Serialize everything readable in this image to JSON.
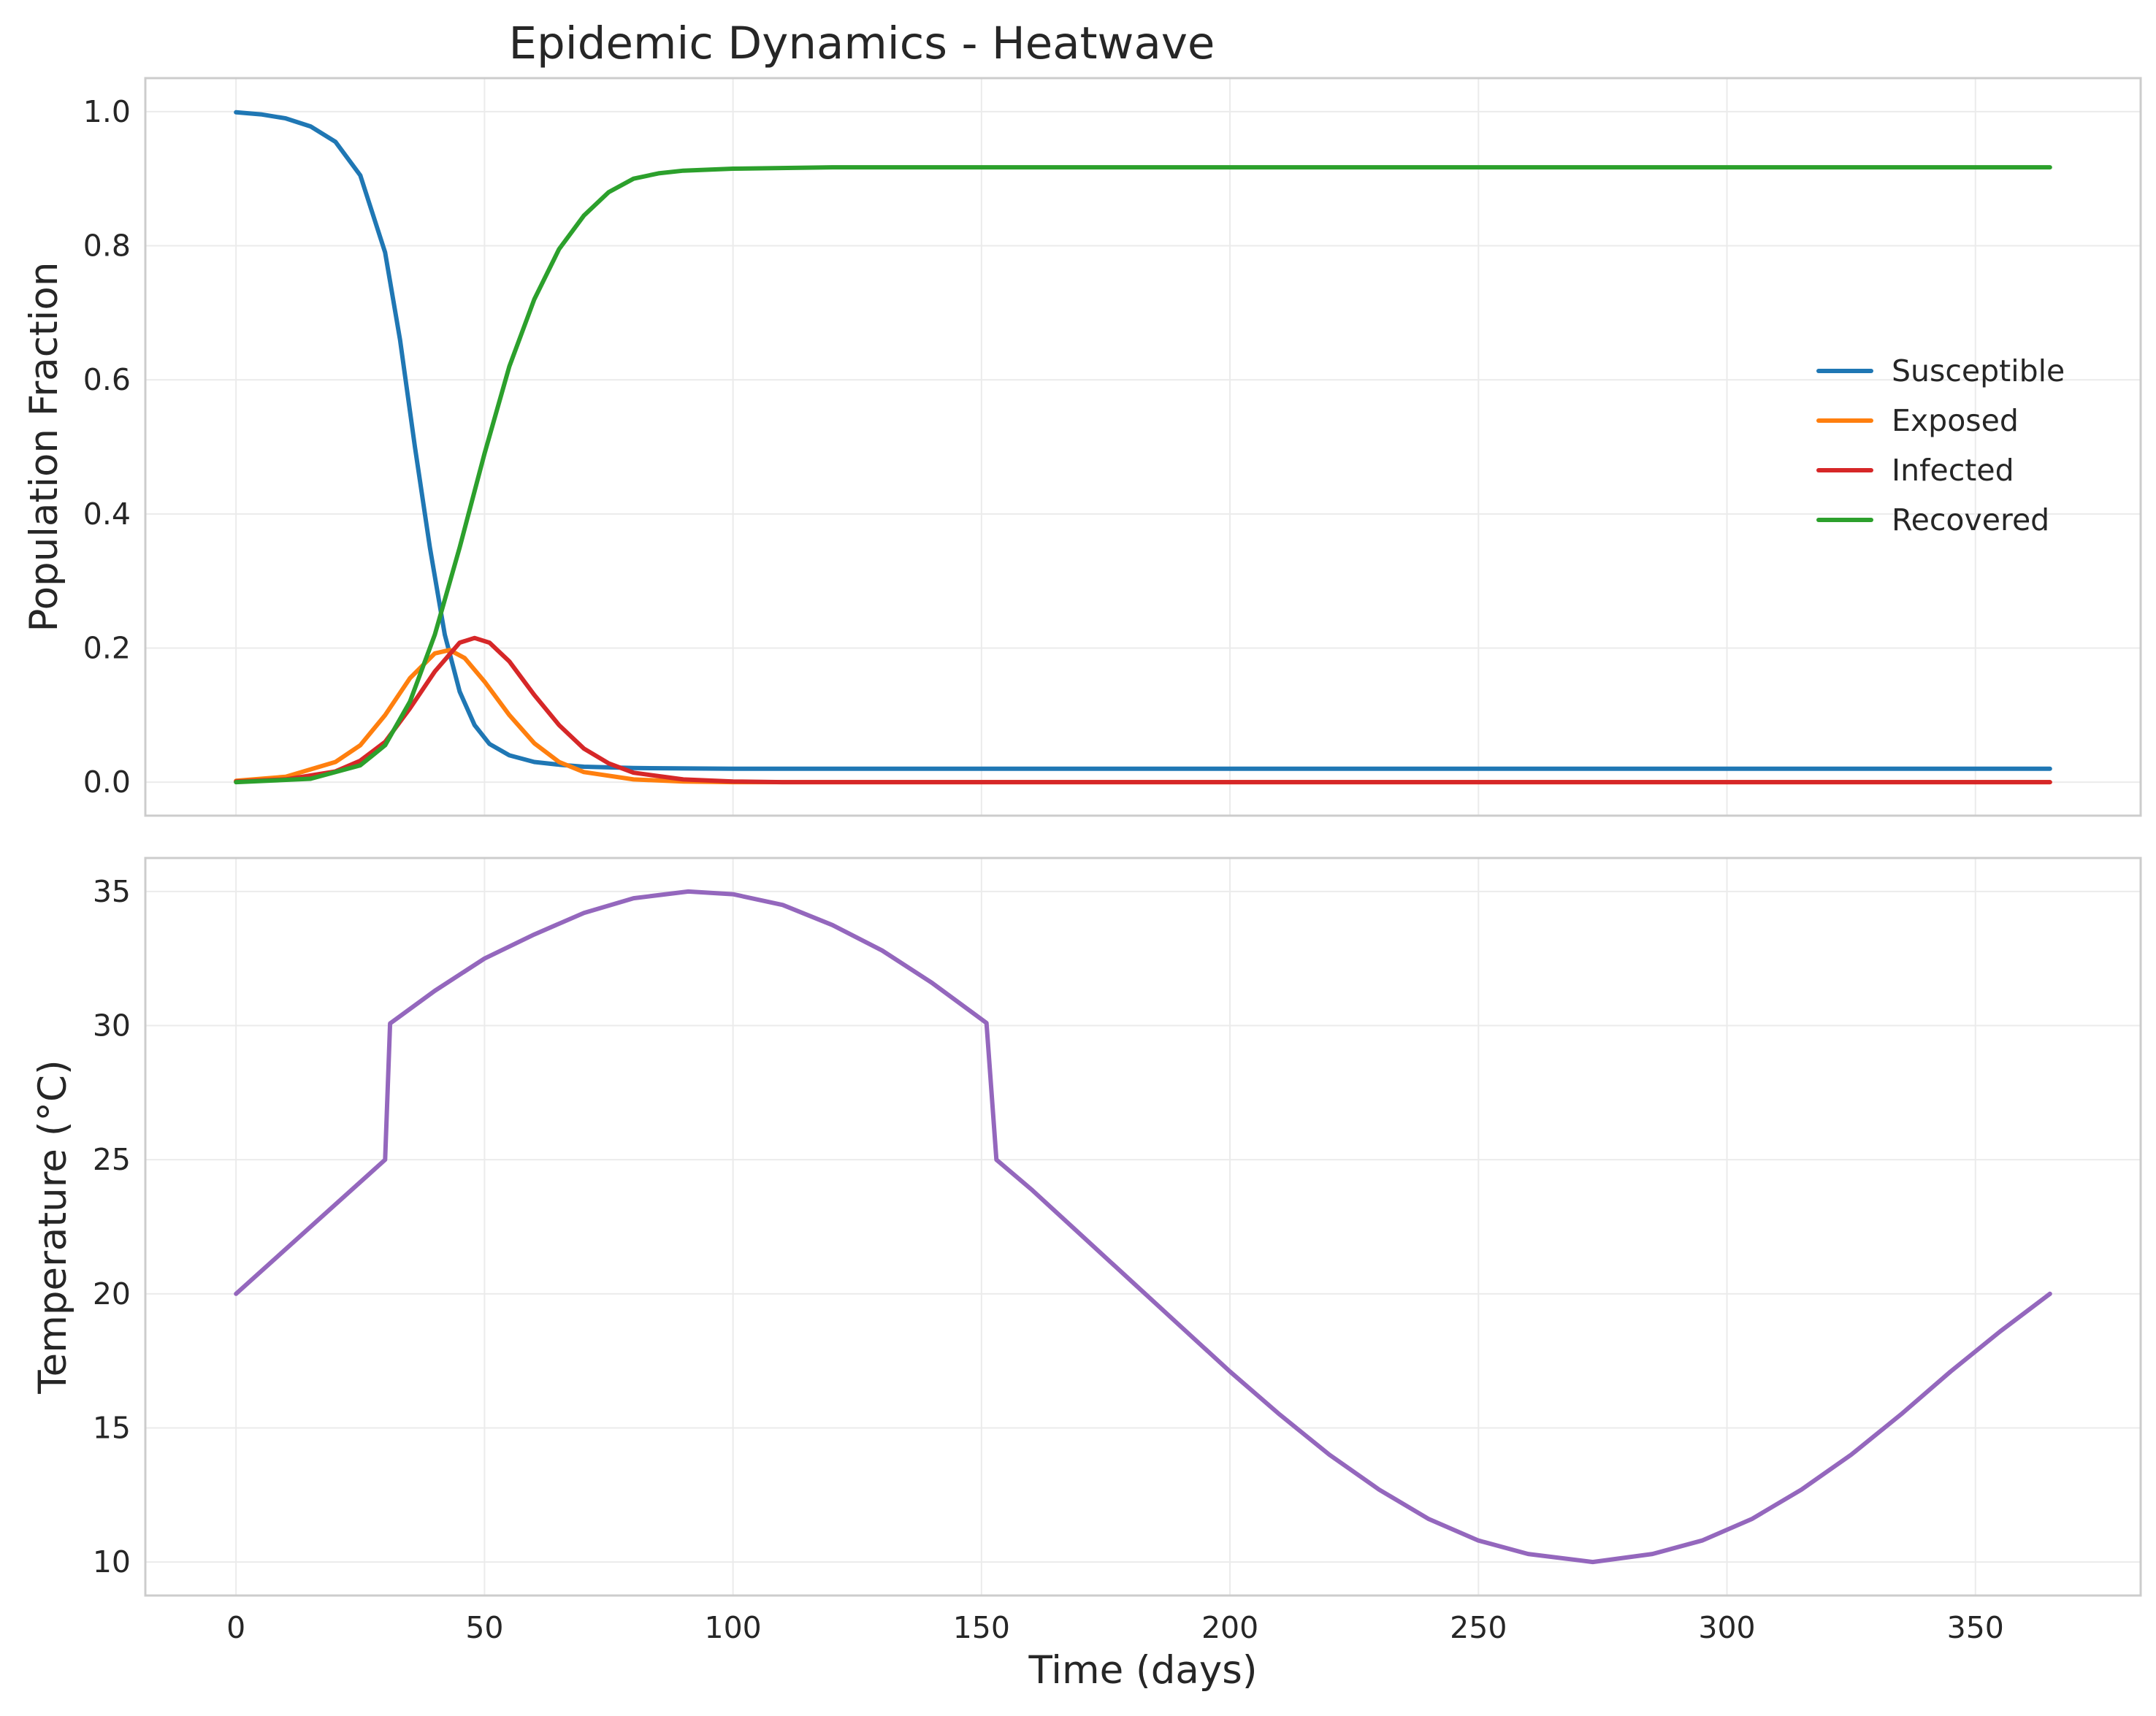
{
  "chart_data": [
    {
      "type": "line",
      "title": "Epidemic Dynamics - Heatwave",
      "xlabel": "",
      "ylabel": "Population Fraction",
      "xlim": [
        -18.25,
        383.25
      ],
      "ylim": [
        -0.05,
        1.05
      ],
      "xticks": [
        0,
        50,
        100,
        150,
        200,
        250,
        300,
        350
      ],
      "yticks": [
        "0.0",
        "0.2",
        "0.4",
        "0.6",
        "0.8",
        "1.0"
      ],
      "grid": true,
      "legend_position": "center-right",
      "series": [
        {
          "name": "Susceptible",
          "color": "#1f77b4",
          "points": [
            [
              0,
              0.999
            ],
            [
              5,
              0.996
            ],
            [
              10,
              0.99
            ],
            [
              15,
              0.978
            ],
            [
              20,
              0.955
            ],
            [
              25,
              0.905
            ],
            [
              30,
              0.79
            ],
            [
              33,
              0.66
            ],
            [
              36,
              0.5
            ],
            [
              39,
              0.35
            ],
            [
              42,
              0.22
            ],
            [
              45,
              0.135
            ],
            [
              48,
              0.085
            ],
            [
              51,
              0.057
            ],
            [
              55,
              0.04
            ],
            [
              60,
              0.03
            ],
            [
              65,
              0.026
            ],
            [
              70,
              0.023
            ],
            [
              80,
              0.021
            ],
            [
              100,
              0.02
            ],
            [
              200,
              0.02
            ],
            [
              365,
              0.02
            ]
          ]
        },
        {
          "name": "Exposed",
          "color": "#ff7f0e",
          "points": [
            [
              0,
              0.002
            ],
            [
              10,
              0.008
            ],
            [
              20,
              0.03
            ],
            [
              25,
              0.055
            ],
            [
              30,
              0.1
            ],
            [
              35,
              0.155
            ],
            [
              40,
              0.192
            ],
            [
              43,
              0.197
            ],
            [
              46,
              0.185
            ],
            [
              50,
              0.15
            ],
            [
              55,
              0.1
            ],
            [
              60,
              0.058
            ],
            [
              65,
              0.03
            ],
            [
              70,
              0.015
            ],
            [
              80,
              0.004
            ],
            [
              90,
              0.001
            ],
            [
              100,
              0
            ],
            [
              365,
              0
            ]
          ]
        },
        {
          "name": "Infected",
          "color": "#d62728",
          "points": [
            [
              0,
              0.001
            ],
            [
              10,
              0.004
            ],
            [
              20,
              0.016
            ],
            [
              25,
              0.032
            ],
            [
              30,
              0.06
            ],
            [
              35,
              0.11
            ],
            [
              40,
              0.165
            ],
            [
              45,
              0.208
            ],
            [
              48,
              0.215
            ],
            [
              51,
              0.208
            ],
            [
              55,
              0.18
            ],
            [
              60,
              0.13
            ],
            [
              65,
              0.085
            ],
            [
              70,
              0.05
            ],
            [
              75,
              0.028
            ],
            [
              80,
              0.014
            ],
            [
              90,
              0.004
            ],
            [
              100,
              0.001
            ],
            [
              110,
              0
            ],
            [
              365,
              0
            ]
          ]
        },
        {
          "name": "Recovered",
          "color": "#2ca02c",
          "points": [
            [
              0,
              0
            ],
            [
              15,
              0.005
            ],
            [
              25,
              0.025
            ],
            [
              30,
              0.055
            ],
            [
              35,
              0.12
            ],
            [
              40,
              0.22
            ],
            [
              45,
              0.35
            ],
            [
              50,
              0.49
            ],
            [
              55,
              0.62
            ],
            [
              60,
              0.72
            ],
            [
              65,
              0.795
            ],
            [
              70,
              0.845
            ],
            [
              75,
              0.88
            ],
            [
              80,
              0.9
            ],
            [
              85,
              0.908
            ],
            [
              90,
              0.912
            ],
            [
              100,
              0.915
            ],
            [
              120,
              0.917
            ],
            [
              365,
              0.917
            ]
          ]
        }
      ]
    },
    {
      "type": "line",
      "title": "",
      "xlabel": "Time (days)",
      "ylabel": "Temperature (°C)",
      "xlim": [
        -18.25,
        383.25
      ],
      "ylim": [
        8.75,
        36.25
      ],
      "xticks": [
        0,
        50,
        100,
        150,
        200,
        250,
        300,
        350
      ],
      "yticks": [
        "10",
        "15",
        "20",
        "25",
        "30",
        "35"
      ],
      "grid": true,
      "series": [
        {
          "color": "#9467bd",
          "points": [
            [
              0,
              20
            ],
            [
              30,
              25
            ],
            [
              31,
              30.08
            ],
            [
              40,
              31.3
            ],
            [
              50,
              32.5
            ],
            [
              60,
              33.4
            ],
            [
              70,
              34.2
            ],
            [
              80,
              34.75
            ],
            [
              91,
              35
            ],
            [
              100,
              34.9
            ],
            [
              110,
              34.5
            ],
            [
              120,
              33.75
            ],
            [
              130,
              32.8
            ],
            [
              140,
              31.6
            ],
            [
              151,
              30.1
            ],
            [
              153,
              25
            ],
            [
              160,
              23.9
            ],
            [
              170,
              22.2
            ],
            [
              180,
              20.5
            ],
            [
              190,
              18.8
            ],
            [
              200,
              17.1
            ],
            [
              210,
              15.5
            ],
            [
              220,
              14.0
            ],
            [
              230,
              12.7
            ],
            [
              240,
              11.6
            ],
            [
              250,
              10.8
            ],
            [
              260,
              10.3
            ],
            [
              273,
              10
            ],
            [
              285,
              10.3
            ],
            [
              295,
              10.8
            ],
            [
              305,
              11.6
            ],
            [
              315,
              12.7
            ],
            [
              325,
              14.0
            ],
            [
              335,
              15.5
            ],
            [
              345,
              17.1
            ],
            [
              355,
              18.6
            ],
            [
              365,
              20
            ]
          ]
        }
      ]
    }
  ]
}
